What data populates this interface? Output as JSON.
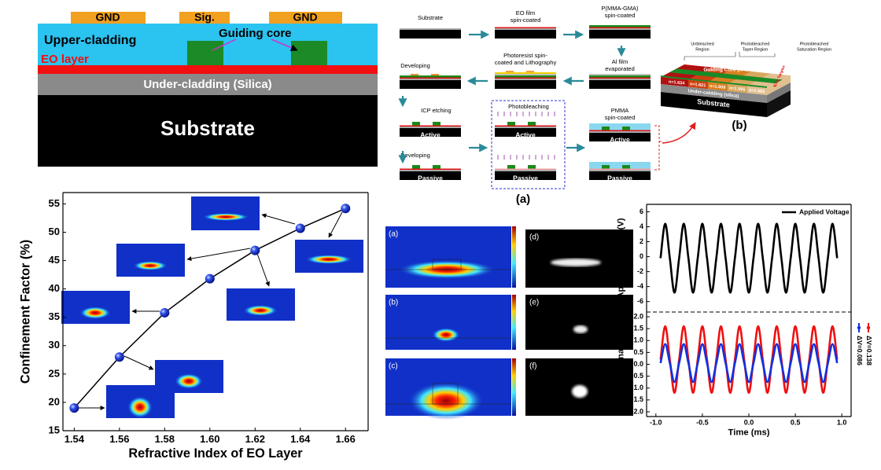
{
  "cross_section": {
    "electrodes": [
      "GND",
      "Sig.",
      "GND"
    ],
    "upper_cladding": "Upper-cladding",
    "guiding_core": "Guiding core",
    "eo_layer": "EO layer",
    "under_cladding": "Under-cladding (Silica)",
    "substrate": "Substrate"
  },
  "process_flow": {
    "substrate": "Substrate",
    "eo_film": [
      "EO film",
      "spin-coated"
    ],
    "pmma_gma": [
      "P(MMA-GMA)",
      "spin-coated"
    ],
    "al_film": [
      "Al film",
      "evaporated"
    ],
    "photoresist": [
      "Photoresist spin-",
      "coated and Lithography"
    ],
    "developing_1": "Developing",
    "icp": "ICP etching",
    "photobleaching": "Photobleaching",
    "pmma": [
      "PMMA",
      "spin-coated"
    ],
    "developing_2": "Developing",
    "active": [
      "Active",
      "Active",
      "Active"
    ],
    "passive": [
      "Passive",
      "Passive",
      "Passive"
    ],
    "label": "(a)"
  },
  "device_3d": {
    "regions": [
      [
        "Unbleached",
        "Region"
      ],
      [
        "Photobleached",
        "Taper Region"
      ],
      [
        "Photobleached",
        "Saturation  Region"
      ]
    ],
    "core": "Guiding Core (n=1.496)",
    "indices": [
      "n=1.634",
      "n=1.621",
      "n=1.608",
      "n=1.595",
      "n=1.582"
    ],
    "eo": "EO layer",
    "under": "Under-caldding (silica)",
    "substrate": "Substrate",
    "label": "(b)"
  },
  "mode_maps": {
    "labels": [
      "(a)",
      "(b)",
      "(c)",
      "(d)",
      "(e)",
      "(f)"
    ]
  },
  "chart_data": [
    {
      "type": "line",
      "x": [
        1.54,
        1.56,
        1.58,
        1.6,
        1.62,
        1.64,
        1.66
      ],
      "values": [
        19,
        28,
        35.8,
        41.8,
        46.8,
        50.7,
        54.2
      ],
      "color": "#1a3fd0",
      "markers": true,
      "xlabel": "Refractive Index of EO Layer",
      "ylabel": "Confinement Factor (%)",
      "xlim": [
        1.535,
        1.67
      ],
      "ylim": [
        15,
        57
      ],
      "xticks": [
        1.54,
        1.56,
        1.58,
        {
          "value": 1.6,
          "label": "1.60"
        },
        1.62,
        1.64,
        1.66
      ],
      "yticks": [
        15,
        20,
        25,
        30,
        35,
        40,
        45,
        50,
        55
      ]
    },
    {
      "type": "line",
      "smooth": true,
      "legend": "upper right",
      "x": [
        -0.95,
        -0.9,
        -0.85,
        -0.8,
        -0.75,
        -0.7,
        -0.65,
        -0.6,
        -0.55,
        -0.5,
        -0.45,
        -0.4,
        -0.35,
        -0.3,
        -0.25,
        -0.2,
        -0.15,
        -0.1,
        -0.05,
        0,
        0.05,
        0.1,
        0.15,
        0.2,
        0.25,
        0.3,
        0.35,
        0.4,
        0.45,
        0.5,
        0.55,
        0.6,
        0.65,
        0.7,
        0.75,
        0.8,
        0.85,
        0.9,
        0.95
      ],
      "series": [
        {
          "name": "Applied Voltage",
          "color": "#000000",
          "values": [
            -0.2,
            4.4,
            -0.2,
            -4.8,
            -0.2,
            4.4,
            -0.2,
            -4.8,
            -0.2,
            4.4,
            -0.2,
            -4.8,
            -0.2,
            4.4,
            -0.2,
            -4.8,
            -0.2,
            4.4,
            -0.2,
            -4.8,
            -0.2,
            4.4,
            -0.2,
            -4.8,
            -0.2,
            4.4,
            -0.2,
            -4.8,
            -0.2,
            4.4,
            -0.2,
            -4.8,
            -0.2,
            4.4,
            -0.2,
            -4.8,
            -0.2,
            4.4,
            -0.2
          ]
        }
      ],
      "ylabel": "Applied Voltage (V)",
      "xlim": [
        -1.1,
        1.1
      ],
      "ylim": [
        -7.4,
        7
      ],
      "yticks": [
        -6,
        -4,
        -2,
        0,
        2,
        4,
        6
      ]
    },
    {
      "type": "line",
      "smooth": true,
      "legend": "right",
      "x": [
        -0.95,
        -0.9,
        -0.85,
        -0.8,
        -0.75,
        -0.7,
        -0.65,
        -0.6,
        -0.55,
        -0.5,
        -0.45,
        -0.4,
        -0.35,
        -0.3,
        -0.25,
        -0.2,
        -0.15,
        -0.1,
        -0.05,
        0,
        0.05,
        0.1,
        0.15,
        0.2,
        0.25,
        0.3,
        0.35,
        0.4,
        0.45,
        0.5,
        0.55,
        0.6,
        0.65,
        0.7,
        0.75,
        0.8,
        0.85,
        0.9,
        0.95
      ],
      "series": [
        {
          "name": "ΔV=0.138",
          "color": "#f01010",
          "values": [
            0.2,
            1.6,
            0.2,
            -1.2,
            0.2,
            1.6,
            0.2,
            -1.2,
            0.2,
            1.6,
            0.2,
            -1.2,
            0.2,
            1.6,
            0.2,
            -1.2,
            0.2,
            1.6,
            0.2,
            -1.2,
            0.2,
            1.6,
            0.2,
            -1.2,
            0.2,
            1.6,
            0.2,
            -1.2,
            0.2,
            1.6,
            0.2,
            -1.2,
            0.2,
            1.6,
            0.2,
            -1.2,
            0.2,
            1.6,
            0.2
          ]
        },
        {
          "name": "ΔV=0.086",
          "color": "#1030e0",
          "values": [
            0.05,
            0.85,
            0.05,
            -0.75,
            0.05,
            0.85,
            0.05,
            -0.75,
            0.05,
            0.85,
            0.05,
            -0.75,
            0.05,
            0.85,
            0.05,
            -0.75,
            0.05,
            0.85,
            0.05,
            -0.75,
            0.05,
            0.85,
            0.05,
            -0.75,
            0.05,
            0.85,
            0.05,
            -0.75,
            0.05,
            0.85,
            0.05,
            -0.75,
            0.05,
            0.85,
            0.05,
            -0.75,
            0.05,
            0.85,
            0.05
          ]
        }
      ],
      "xlabel": "Time (ms)",
      "ylabel": "Output Signal (mV)",
      "xlim": [
        -1.1,
        1.1
      ],
      "ylim": [
        -2.2,
        2.2
      ],
      "xticks": [
        {
          "value": -1,
          "label": "-1.0"
        },
        -0.5,
        {
          "value": 0,
          "label": "0.0"
        },
        0.5,
        {
          "value": 1,
          "label": "1.0"
        }
      ],
      "yticks": [
        {
          "value": -2,
          "label": "-2.0"
        },
        -1.5,
        {
          "value": -1,
          "label": "-1.0"
        },
        -0.5,
        {
          "value": 0,
          "label": "0.0"
        },
        0.5,
        {
          "value": 1,
          "label": "1.0"
        },
        1.5,
        {
          "value": 2,
          "label": "2.0"
        }
      ]
    }
  ]
}
